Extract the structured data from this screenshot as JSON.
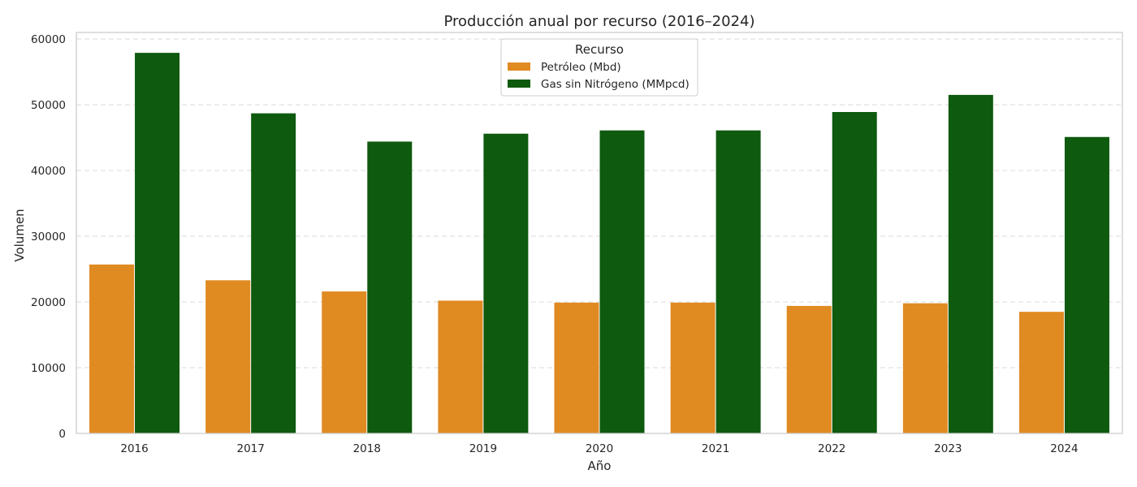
{
  "chart_data": {
    "type": "bar",
    "title": "Producción anual por recurso (2016–2024)",
    "xlabel": "Año",
    "ylabel": "Volumen",
    "categories": [
      "2016",
      "2017",
      "2018",
      "2019",
      "2020",
      "2021",
      "2022",
      "2023",
      "2024"
    ],
    "series": [
      {
        "name": "Petróleo (Mbd)",
        "color": "#e08a22",
        "values": [
          25700,
          23300,
          21600,
          20200,
          19900,
          19900,
          19400,
          19800,
          18500
        ]
      },
      {
        "name": "Gas sin Nitrógeno (MMpcd)",
        "color": "#0e5a0e",
        "values": [
          57900,
          48700,
          44400,
          45600,
          46100,
          46100,
          48900,
          51500,
          45100
        ]
      }
    ],
    "ylim": [
      0,
      61000
    ],
    "yticks": [
      0,
      10000,
      20000,
      30000,
      40000,
      50000,
      60000
    ],
    "grid": true,
    "legend": {
      "title": "Recurso",
      "position": "top-center"
    }
  }
}
